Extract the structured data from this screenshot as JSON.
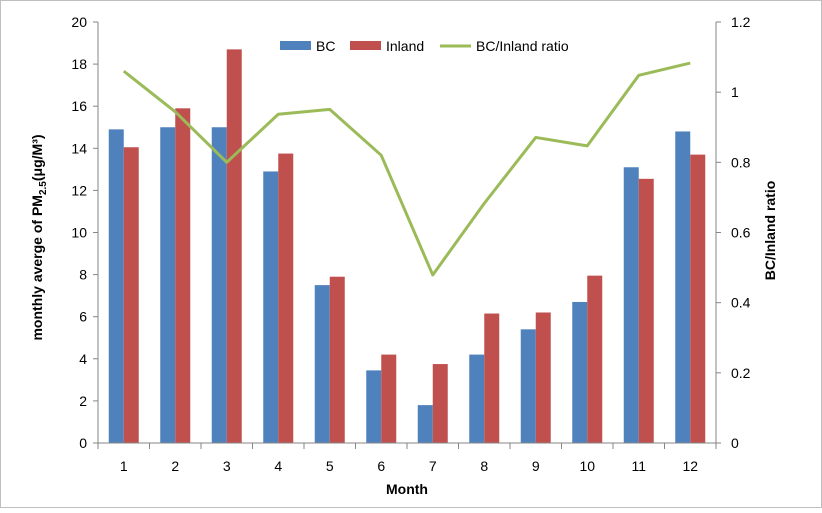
{
  "chart_data": {
    "type": "bar",
    "categories": [
      "1",
      "2",
      "3",
      "4",
      "5",
      "6",
      "7",
      "8",
      "9",
      "10",
      "11",
      "12"
    ],
    "series": [
      {
        "name": "BC",
        "type": "bar",
        "axis": "left",
        "color": "#4f81bd",
        "values": [
          14.9,
          15.0,
          15.0,
          12.9,
          7.5,
          3.45,
          1.8,
          4.2,
          5.4,
          6.7,
          13.1,
          14.8
        ]
      },
      {
        "name": "Inland",
        "type": "bar",
        "axis": "left",
        "color": "#c0504d",
        "values": [
          14.05,
          15.9,
          18.7,
          13.75,
          7.9,
          4.2,
          3.75,
          6.15,
          6.2,
          7.95,
          12.55,
          13.7
        ]
      },
      {
        "name": "BC/Inland ratio",
        "type": "line",
        "axis": "right",
        "color": "#9bbb59",
        "values": [
          1.06,
          0.944,
          0.8,
          0.937,
          0.951,
          0.82,
          0.479,
          0.683,
          0.871,
          0.847,
          1.048,
          1.083
        ]
      }
    ],
    "xlabel": "Month",
    "ylabel": "monthly averge of PM",
    "ylabel_sub": "2.5",
    "ylabel_unit": "(μg/M³)",
    "y2label": "BC/Inland ratio",
    "ylim": [
      0,
      20
    ],
    "y2lim": [
      0,
      1.2
    ],
    "yticks": [
      "0",
      "2",
      "4",
      "6",
      "8",
      "10",
      "12",
      "14",
      "16",
      "18",
      "20"
    ],
    "y2ticks": [
      "0",
      "0.2",
      "0.4",
      "0.6",
      "0.8",
      "1",
      "1.2"
    ],
    "legend_position": "top-center",
    "grid": false
  }
}
